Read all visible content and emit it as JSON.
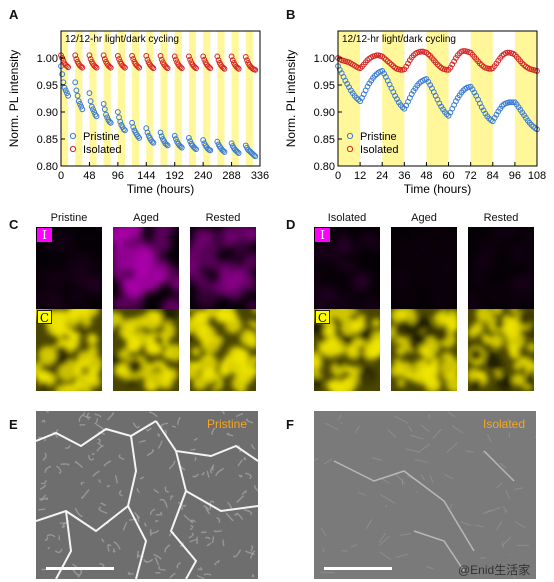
{
  "panel_labels": {
    "A": "A",
    "B": "B",
    "C": "C",
    "D": "D",
    "E": "E",
    "F": "F"
  },
  "chart_data": [
    {
      "type": "scatter",
      "panel": "A",
      "title": "12/12-hr light/dark cycling",
      "xlabel": "Time (hours)",
      "ylabel": "Norm. PL intensity",
      "xlim": [
        0,
        336
      ],
      "ylim": [
        0.8,
        1.05
      ],
      "xticks": [
        0,
        48,
        96,
        144,
        192,
        240,
        288,
        336
      ],
      "yticks": [
        0.8,
        0.85,
        0.9,
        0.95,
        1.0
      ],
      "ytick_labels": [
        "0.80",
        "0.85",
        "0.90",
        "0.95",
        "1.00"
      ],
      "legend": "bottom-left",
      "light_periods": [
        [
          0,
          12
        ],
        [
          24,
          36
        ],
        [
          48,
          60
        ],
        [
          72,
          84
        ],
        [
          96,
          108
        ],
        [
          120,
          132
        ],
        [
          144,
          156
        ],
        [
          168,
          180
        ],
        [
          192,
          204
        ],
        [
          216,
          228
        ],
        [
          240,
          252
        ],
        [
          264,
          276
        ],
        [
          288,
          300
        ],
        [
          312,
          324
        ]
      ],
      "series": [
        {
          "name": "Pristine",
          "color": "#3a7bd5",
          "x": [
            0,
            2,
            4,
            6,
            8,
            10,
            12,
            24,
            26,
            28,
            30,
            32,
            34,
            36,
            48,
            50,
            52,
            54,
            56,
            58,
            60,
            72,
            74,
            76,
            78,
            80,
            82,
            84,
            96,
            98,
            100,
            102,
            104,
            106,
            108,
            120,
            122,
            124,
            126,
            128,
            130,
            132,
            144,
            146,
            148,
            150,
            152,
            154,
            156,
            168,
            170,
            172,
            174,
            176,
            178,
            180,
            192,
            194,
            196,
            198,
            200,
            202,
            204,
            216,
            218,
            220,
            222,
            224,
            226,
            228,
            240,
            242,
            244,
            246,
            248,
            250,
            252,
            264,
            266,
            268,
            270,
            272,
            274,
            276,
            288,
            290,
            292,
            294,
            296,
            298,
            300,
            312,
            314,
            316,
            318,
            320,
            322,
            324,
            326,
            328
          ],
          "y": [
            0.985,
            0.97,
            0.955,
            0.945,
            0.94,
            0.935,
            0.93,
            0.955,
            0.94,
            0.93,
            0.92,
            0.915,
            0.91,
            0.905,
            0.935,
            0.92,
            0.91,
            0.905,
            0.9,
            0.895,
            0.892,
            0.915,
            0.905,
            0.895,
            0.89,
            0.885,
            0.882,
            0.88,
            0.9,
            0.89,
            0.882,
            0.876,
            0.872,
            0.868,
            0.866,
            0.88,
            0.872,
            0.866,
            0.862,
            0.858,
            0.855,
            0.852,
            0.87,
            0.862,
            0.856,
            0.852,
            0.848,
            0.845,
            0.843,
            0.862,
            0.855,
            0.85,
            0.846,
            0.842,
            0.84,
            0.838,
            0.856,
            0.85,
            0.845,
            0.841,
            0.838,
            0.836,
            0.834,
            0.852,
            0.846,
            0.841,
            0.838,
            0.835,
            0.833,
            0.831,
            0.848,
            0.842,
            0.838,
            0.835,
            0.832,
            0.83,
            0.829,
            0.845,
            0.84,
            0.836,
            0.833,
            0.83,
            0.828,
            0.826,
            0.842,
            0.837,
            0.833,
            0.83,
            0.828,
            0.826,
            0.824,
            0.838,
            0.834,
            0.83,
            0.828,
            0.826,
            0.824,
            0.822,
            0.82,
            0.818
          ]
        },
        {
          "name": "Isolated",
          "color": "#d62728",
          "x": [
            0,
            2,
            4,
            6,
            8,
            10,
            12,
            24,
            26,
            28,
            30,
            32,
            34,
            36,
            48,
            50,
            52,
            54,
            56,
            58,
            60,
            72,
            74,
            76,
            78,
            80,
            82,
            84,
            96,
            98,
            100,
            102,
            104,
            106,
            108,
            120,
            122,
            124,
            126,
            128,
            130,
            132,
            144,
            146,
            148,
            150,
            152,
            154,
            156,
            168,
            170,
            172,
            174,
            176,
            178,
            180,
            192,
            194,
            196,
            198,
            200,
            202,
            204,
            216,
            218,
            220,
            222,
            224,
            226,
            228,
            240,
            242,
            244,
            246,
            248,
            250,
            252,
            264,
            266,
            268,
            270,
            272,
            274,
            276,
            288,
            290,
            292,
            294,
            296,
            298,
            300,
            312,
            314,
            316,
            318,
            320,
            322,
            324,
            326,
            328
          ],
          "y": [
            1.005,
            1.0,
            0.995,
            0.99,
            0.987,
            0.985,
            0.983,
            1.005,
            0.998,
            0.993,
            0.989,
            0.986,
            0.984,
            0.982,
            1.005,
            0.998,
            0.993,
            0.989,
            0.986,
            0.984,
            0.982,
            1.005,
            0.998,
            0.993,
            0.989,
            0.986,
            0.984,
            0.982,
            1.004,
            0.998,
            0.993,
            0.989,
            0.986,
            0.984,
            0.982,
            1.004,
            0.998,
            0.993,
            0.989,
            0.986,
            0.984,
            0.982,
            1.004,
            0.997,
            0.992,
            0.988,
            0.985,
            0.983,
            0.981,
            1.004,
            0.997,
            0.992,
            0.988,
            0.985,
            0.983,
            0.981,
            1.003,
            0.997,
            0.992,
            0.988,
            0.985,
            0.983,
            0.981,
            1.003,
            0.997,
            0.992,
            0.988,
            0.985,
            0.983,
            0.981,
            1.003,
            0.997,
            0.992,
            0.988,
            0.985,
            0.983,
            0.981,
            1.003,
            0.996,
            0.991,
            0.987,
            0.984,
            0.982,
            0.98,
            1.003,
            0.996,
            0.991,
            0.987,
            0.984,
            0.982,
            0.98,
            1.002,
            0.996,
            0.991,
            0.987,
            0.984,
            0.982,
            0.98,
            0.979,
            0.978
          ]
        }
      ]
    },
    {
      "type": "scatter",
      "panel": "B",
      "title": "12/12-hr light/dark cycling",
      "xlabel": "Time (hours)",
      "ylabel": "Norm. PL intensity",
      "xlim": [
        0,
        108
      ],
      "ylim": [
        0.8,
        1.05
      ],
      "xticks": [
        0,
        12,
        24,
        36,
        48,
        60,
        72,
        84,
        96,
        108
      ],
      "yticks": [
        0.8,
        0.85,
        0.9,
        0.95,
        1.0
      ],
      "ytick_labels": [
        "0.80",
        "0.85",
        "0.90",
        "0.95",
        "1.00"
      ],
      "legend": "bottom-left",
      "light_periods": [
        [
          0,
          12
        ],
        [
          24,
          36
        ],
        [
          48,
          60
        ],
        [
          72,
          84
        ],
        [
          96,
          108
        ]
      ],
      "series": [
        {
          "name": "Pristine",
          "color": "#3a7bd5",
          "x": [
            0,
            1,
            2,
            3,
            4,
            5,
            6,
            7,
            8,
            9,
            10,
            11,
            12,
            13,
            14,
            15,
            16,
            17,
            18,
            19,
            20,
            21,
            22,
            23,
            24,
            25,
            26,
            27,
            28,
            29,
            30,
            31,
            32,
            33,
            34,
            35,
            36,
            37,
            38,
            39,
            40,
            41,
            42,
            43,
            44,
            45,
            46,
            47,
            48,
            49,
            50,
            51,
            52,
            53,
            54,
            55,
            56,
            57,
            58,
            59,
            60,
            61,
            62,
            63,
            64,
            65,
            66,
            67,
            68,
            69,
            70,
            71,
            72,
            73,
            74,
            75,
            76,
            77,
            78,
            79,
            80,
            81,
            82,
            83,
            84,
            85,
            86,
            87,
            88,
            89,
            90,
            91,
            92,
            93,
            94,
            95,
            96,
            97,
            98,
            99,
            100,
            101,
            102,
            103,
            104,
            105,
            106,
            107,
            108
          ],
          "y": [
            0.985,
            0.978,
            0.972,
            0.965,
            0.958,
            0.952,
            0.946,
            0.94,
            0.935,
            0.93,
            0.926,
            0.923,
            0.92,
            0.926,
            0.933,
            0.94,
            0.947,
            0.953,
            0.958,
            0.963,
            0.967,
            0.97,
            0.973,
            0.975,
            0.976,
            0.971,
            0.965,
            0.958,
            0.951,
            0.944,
            0.937,
            0.93,
            0.924,
            0.918,
            0.913,
            0.909,
            0.906,
            0.912,
            0.919,
            0.926,
            0.933,
            0.939,
            0.944,
            0.949,
            0.953,
            0.956,
            0.958,
            0.96,
            0.961,
            0.956,
            0.95,
            0.944,
            0.937,
            0.93,
            0.923,
            0.916,
            0.91,
            0.905,
            0.9,
            0.896,
            0.893,
            0.899,
            0.906,
            0.913,
            0.92,
            0.926,
            0.931,
            0.936,
            0.94,
            0.943,
            0.945,
            0.946,
            0.947,
            0.942,
            0.936,
            0.93,
            0.923,
            0.916,
            0.909,
            0.903,
            0.897,
            0.892,
            0.888,
            0.885,
            0.883,
            0.889,
            0.895,
            0.901,
            0.906,
            0.911,
            0.914,
            0.916,
            0.917,
            0.918,
            0.918,
            0.918,
            0.918,
            0.914,
            0.909,
            0.904,
            0.899,
            0.894,
            0.889,
            0.884,
            0.88,
            0.876,
            0.873,
            0.87,
            0.868
          ]
        },
        {
          "name": "Isolated",
          "color": "#d62728",
          "x": [
            0,
            1,
            2,
            3,
            4,
            5,
            6,
            7,
            8,
            9,
            10,
            11,
            12,
            13,
            14,
            15,
            16,
            17,
            18,
            19,
            20,
            21,
            22,
            23,
            24,
            25,
            26,
            27,
            28,
            29,
            30,
            31,
            32,
            33,
            34,
            35,
            36,
            37,
            38,
            39,
            40,
            41,
            42,
            43,
            44,
            45,
            46,
            47,
            48,
            49,
            50,
            51,
            52,
            53,
            54,
            55,
            56,
            57,
            58,
            59,
            60,
            61,
            62,
            63,
            64,
            65,
            66,
            67,
            68,
            69,
            70,
            71,
            72,
            73,
            74,
            75,
            76,
            77,
            78,
            79,
            80,
            81,
            82,
            83,
            84,
            85,
            86,
            87,
            88,
            89,
            90,
            91,
            92,
            93,
            94,
            95,
            96,
            97,
            98,
            99,
            100,
            101,
            102,
            103,
            104,
            105,
            106,
            107,
            108
          ],
          "y": [
            1.0,
            0.998,
            0.996,
            0.995,
            0.994,
            0.993,
            0.992,
            0.99,
            0.988,
            0.986,
            0.984,
            0.982,
            0.981,
            0.984,
            0.988,
            0.992,
            0.996,
            0.999,
            1.001,
            1.003,
            1.004,
            1.005,
            1.005,
            1.004,
            1.003,
            1.0,
            0.997,
            0.994,
            0.991,
            0.988,
            0.985,
            0.982,
            0.98,
            0.979,
            0.978,
            0.978,
            0.979,
            0.984,
            0.99,
            0.996,
            1.001,
            1.005,
            1.008,
            1.01,
            1.011,
            1.012,
            1.012,
            1.011,
            1.01,
            1.007,
            1.004,
            1.0,
            0.996,
            0.992,
            0.988,
            0.985,
            0.982,
            0.98,
            0.979,
            0.978,
            0.978,
            0.982,
            0.988,
            0.994,
            1.0,
            1.005,
            1.009,
            1.012,
            1.013,
            1.013,
            1.012,
            1.011,
            1.01,
            1.006,
            1.002,
            0.998,
            0.994,
            0.99,
            0.987,
            0.984,
            0.982,
            0.981,
            0.98,
            0.98,
            0.981,
            0.985,
            0.99,
            0.995,
            1.0,
            1.004,
            1.007,
            1.009,
            1.01,
            1.01,
            1.009,
            1.008,
            1.006,
            1.002,
            0.998,
            0.994,
            0.99,
            0.987,
            0.984,
            0.982,
            0.98,
            0.979,
            0.978,
            0.977,
            0.976
          ]
        }
      ]
    }
  ],
  "panel_c": {
    "columns": [
      "Pristine",
      "Aged",
      "Rested"
    ],
    "row_tags": [
      "I",
      "C"
    ]
  },
  "panel_d": {
    "columns": [
      "Isolated",
      "Aged",
      "Rested"
    ],
    "row_tags": [
      "I",
      "C"
    ]
  },
  "panel_e": {
    "label": "Pristine"
  },
  "panel_f": {
    "label": "Isolated"
  },
  "watermark": {
    "text": "@Enid生活家"
  },
  "colors": {
    "light_band": "#fff799",
    "pristine": "#3a7bd5",
    "isolated": "#d62728",
    "iodine_map": "#b000b0",
    "c_map": "#e6dd00",
    "label_orange": "#f5a623"
  }
}
